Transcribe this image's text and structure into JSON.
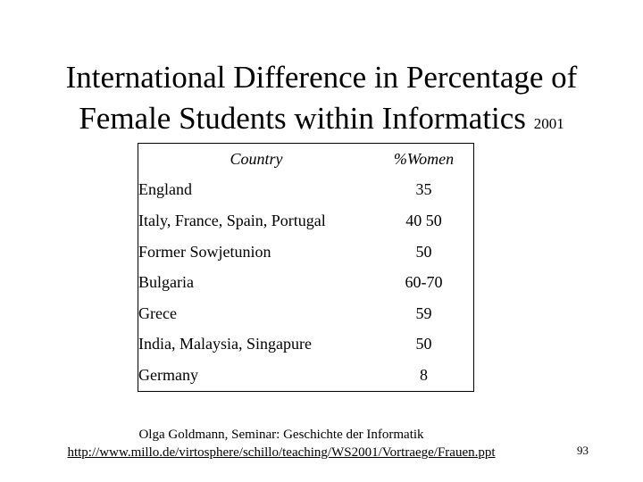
{
  "title": {
    "line1": "International Difference in Percentage of",
    "line2": "Female Students within Informatics",
    "year": "2001"
  },
  "table": {
    "headers": {
      "country": "Country",
      "pct": "%Women"
    },
    "rows": [
      {
        "country": "England",
        "pct": "35"
      },
      {
        "country": "Italy, France, Spain, Portugal",
        "pct": "40 50"
      },
      {
        "country": "Former Sowjetunion",
        "pct": "50"
      },
      {
        "country": "Bulgaria",
        "pct": "60-70"
      },
      {
        "country": "Grece",
        "pct": "59"
      },
      {
        "country": "India, Malaysia, Singapure",
        "pct": "50"
      },
      {
        "country": "Germany",
        "pct": "8"
      }
    ]
  },
  "source": {
    "line1": "Olga Goldmann, Seminar: Geschichte der Informatik",
    "url": "http://www.millo.de/virtosphere/schillo/teaching/WS2001/Vortraege/Frauen.ppt"
  },
  "page_number": "93"
}
